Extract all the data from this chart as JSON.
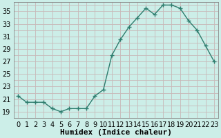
{
  "x": [
    0,
    1,
    2,
    3,
    4,
    5,
    6,
    7,
    8,
    9,
    10,
    11,
    12,
    13,
    14,
    15,
    16,
    17,
    18,
    19,
    20,
    21,
    22,
    23
  ],
  "y": [
    21.5,
    20.5,
    20.5,
    20.5,
    19.5,
    19.0,
    19.5,
    19.5,
    19.5,
    21.5,
    22.5,
    28.0,
    30.5,
    32.5,
    34.0,
    35.5,
    34.5,
    36.0,
    36.0,
    35.5,
    33.5,
    32.0,
    29.5,
    27.0
  ],
  "line_color": "#2e7d6e",
  "marker": "+",
  "marker_size": 4,
  "linewidth": 1.0,
  "bg_color": "#cceee8",
  "grid_color": "#c8b8b8",
  "xlabel": "Humidex (Indice chaleur)",
  "yticks": [
    19,
    21,
    23,
    25,
    27,
    29,
    31,
    33,
    35
  ],
  "xtick_labels": [
    "0",
    "1",
    "2",
    "3",
    "4",
    "5",
    "6",
    "7",
    "8",
    "9",
    "10",
    "11",
    "12",
    "13",
    "14",
    "15",
    "16",
    "17",
    "18",
    "19",
    "20",
    "21",
    "22",
    "23"
  ],
  "ylim": [
    18.0,
    36.5
  ],
  "xlim": [
    -0.5,
    23.5
  ],
  "xlabel_fontsize": 8,
  "tick_fontsize": 7
}
